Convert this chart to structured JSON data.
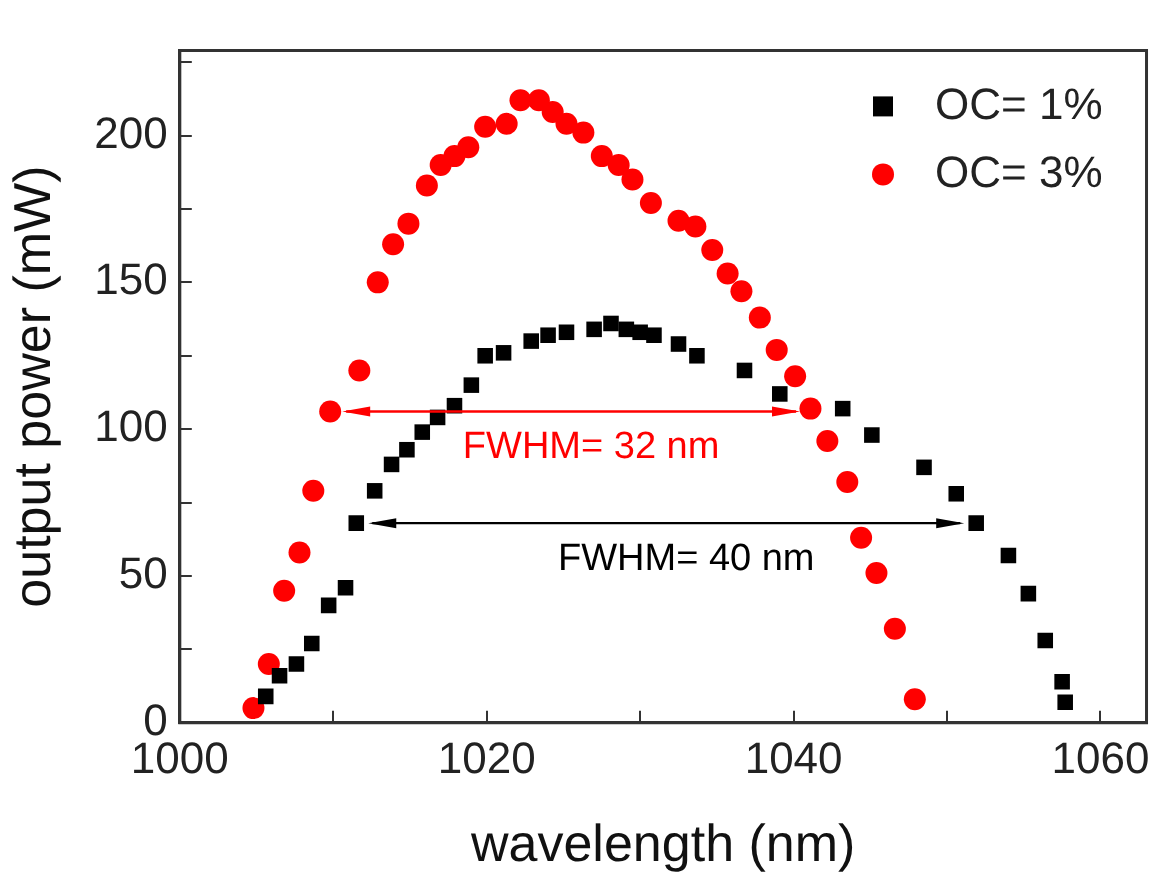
{
  "chart_data": {
    "type": "scatter",
    "xlabel": "wavelength (nm)",
    "ylabel": "output power (mW)",
    "xlim": [
      1000,
      1063
    ],
    "ylim": [
      0,
      229
    ],
    "xticks": [
      1000,
      {
        "value": 1010,
        "label": null
      },
      1020,
      {
        "value": 1030,
        "label": null
      },
      1040,
      {
        "value": 1050,
        "label": null
      },
      1060
    ],
    "yticks": [
      0,
      {
        "value": 25,
        "label": null
      },
      50,
      {
        "value": 75,
        "label": null
      },
      100,
      {
        "value": 125,
        "label": null
      },
      150,
      {
        "value": 175,
        "label": null
      },
      200,
      {
        "value": 225,
        "label": null
      }
    ],
    "grid": false,
    "legend": "top right",
    "series": [
      {
        "name": "OC= 1%",
        "color": "#000000",
        "marker": "square",
        "x": [
          1005.6,
          1006.5,
          1007.6,
          1008.6,
          1009.7,
          1010.8,
          1011.5,
          1012.7,
          1013.8,
          1014.8,
          1015.8,
          1016.8,
          1017.9,
          1019.0,
          1019.9,
          1021.1,
          1022.9,
          1024.0,
          1025.2,
          1027.0,
          1028.1,
          1029.1,
          1030.0,
          1030.9,
          1032.5,
          1033.7,
          1036.8,
          1039.1,
          1043.2,
          1045.1,
          1048.5,
          1050.6,
          1051.9,
          1054.0,
          1055.3,
          1056.4,
          1057.5,
          1057.7
        ],
        "values": [
          9,
          16,
          20,
          27,
          40,
          46,
          68,
          79,
          88,
          93,
          99,
          104,
          108,
          115,
          125,
          126,
          130,
          132,
          133,
          134,
          136,
          134,
          133,
          132,
          129,
          125,
          120,
          112,
          107,
          98,
          87,
          78,
          68,
          57,
          44,
          28,
          14,
          7
        ]
      },
      {
        "name": "OC= 3%",
        "color": "#ff0000",
        "marker": "circle",
        "x": [
          1004.8,
          1005.8,
          1006.8,
          1007.8,
          1008.7,
          1009.8,
          1011.7,
          1012.9,
          1013.9,
          1014.9,
          1016.1,
          1017.0,
          1017.9,
          1018.8,
          1019.9,
          1021.3,
          1022.2,
          1023.4,
          1024.3,
          1025.2,
          1026.3,
          1027.5,
          1028.6,
          1029.5,
          1030.7,
          1032.5,
          1033.6,
          1034.7,
          1035.7,
          1036.6,
          1037.8,
          1038.9,
          1040.1,
          1041.1,
          1042.2,
          1043.5,
          1044.4,
          1045.4,
          1046.6,
          1047.9
        ],
        "values": [
          5,
          20,
          45,
          58,
          79,
          106,
          120,
          150,
          163,
          170,
          183,
          190,
          193,
          196,
          203,
          204,
          212,
          212,
          208,
          204,
          201,
          193,
          190,
          185,
          177,
          171,
          169,
          161,
          153,
          147,
          138,
          127,
          118,
          107,
          96,
          82,
          63,
          51,
          32,
          8
        ]
      }
    ],
    "annotations": [
      "FWHM= 40 nm",
      "FWHM= 32 nm"
    ]
  }
}
